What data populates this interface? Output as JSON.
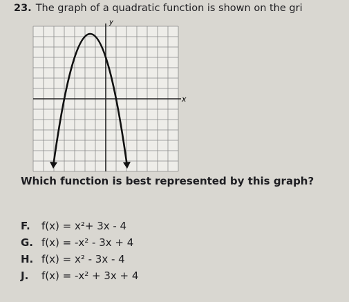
{
  "question": {
    "number": "23.",
    "text": "The graph of a quadratic function is shown on the gri"
  },
  "graph": {
    "y_axis_label": "y",
    "x_axis_label": "x"
  },
  "prompt": "Which function is best represented by this graph?",
  "options": [
    {
      "letter": "F.",
      "text": "f(x) = x²+ 3x - 4"
    },
    {
      "letter": "G.",
      "text": "f(x) = -x² - 3x + 4"
    },
    {
      "letter": "H.",
      "text": "f(x) = x² - 3x - 4"
    },
    {
      "letter": "J.",
      "text": "f(x) = -x² + 3x + 4"
    }
  ]
}
